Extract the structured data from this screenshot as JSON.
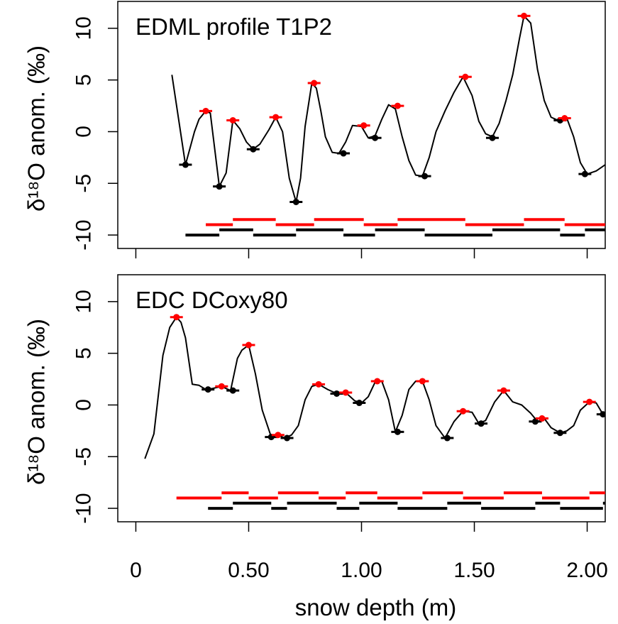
{
  "chart_data": [
    {
      "type": "line",
      "title": "EDML profile T1P2",
      "ylabel": "δ¹⁸O anom.  (‰)",
      "xlim": [
        -0.08,
        2.08
      ],
      "ylim": [
        -11.3,
        12.6
      ],
      "y_ticks": [
        -10,
        -5,
        0,
        5,
        10
      ],
      "y_tick_labels": [
        "-10",
        "-5",
        "0",
        "5",
        "10"
      ],
      "colors": {
        "line": "#000000",
        "peak": "#ff0000",
        "trough": "#000000"
      },
      "series": [
        {
          "x": [
            0.16,
            0.22,
            0.26,
            0.28,
            0.31,
            0.33,
            0.37,
            0.4,
            0.43,
            0.46,
            0.49,
            0.52,
            0.55,
            0.59,
            0.62,
            0.65,
            0.68,
            0.71,
            0.73,
            0.75,
            0.78,
            0.8,
            0.82,
            0.84,
            0.87,
            0.9,
            0.93,
            0.96,
            1.0,
            1.03,
            1.06,
            1.09,
            1.12,
            1.15,
            1.18,
            1.21,
            1.24,
            1.27,
            1.3,
            1.33,
            1.37,
            1.41,
            1.45,
            1.49,
            1.52,
            1.55,
            1.58,
            1.61,
            1.64,
            1.67,
            1.7,
            1.72,
            1.75,
            1.78,
            1.81,
            1.84,
            1.87,
            1.89,
            1.91,
            1.94,
            1.97,
            2.0,
            2.04,
            2.08
          ],
          "y": [
            5.5,
            -3.2,
            0.0,
            1.2,
            2.0,
            1.8,
            -5.3,
            -4.0,
            1.1,
            0.3,
            -1.0,
            -1.7,
            -1.2,
            0.2,
            1.4,
            0.0,
            -4.5,
            -6.8,
            -4.5,
            0.5,
            4.7,
            4.2,
            2.0,
            -0.5,
            -2.0,
            -2.1,
            -1.0,
            0.6,
            0.5,
            -0.6,
            -0.4,
            1.2,
            2.6,
            2.2,
            -0.5,
            -2.8,
            -4.2,
            -4.3,
            -2.5,
            0.0,
            2.0,
            3.8,
            5.3,
            3.5,
            1.0,
            -0.2,
            -0.5,
            0.8,
            3.0,
            5.5,
            9.0,
            11.2,
            10.5,
            6.0,
            3.0,
            1.4,
            1.1,
            1.2,
            1.3,
            -0.5,
            -3.0,
            -4.1,
            -3.8,
            -3.2
          ]
        }
      ],
      "peaks": [
        {
          "x": 0.31,
          "y": 2.0
        },
        {
          "x": 0.43,
          "y": 1.1
        },
        {
          "x": 0.62,
          "y": 1.4
        },
        {
          "x": 0.79,
          "y": 4.7
        },
        {
          "x": 1.01,
          "y": 0.6
        },
        {
          "x": 1.16,
          "y": 2.5
        },
        {
          "x": 1.46,
          "y": 5.3
        },
        {
          "x": 1.72,
          "y": 11.2
        },
        {
          "x": 1.9,
          "y": 1.3
        }
      ],
      "troughs": [
        {
          "x": 0.22,
          "y": -3.2
        },
        {
          "x": 0.37,
          "y": -5.3
        },
        {
          "x": 0.52,
          "y": -1.7
        },
        {
          "x": 0.71,
          "y": -6.8
        },
        {
          "x": 0.92,
          "y": -2.1
        },
        {
          "x": 1.06,
          "y": -0.6
        },
        {
          "x": 1.28,
          "y": -4.3
        },
        {
          "x": 1.58,
          "y": -0.6
        },
        {
          "x": 1.88,
          "y": 1.1
        },
        {
          "x": 1.99,
          "y": -4.1
        }
      ],
      "red_segments": [
        {
          "x": [
            0.31,
            0.43
          ],
          "y": -9.0
        },
        {
          "x": 0.43,
          "x_end": 0.62,
          "y": -8.5
        },
        {
          "x": [
            0.62,
            0.79
          ],
          "y": -9.0
        },
        {
          "x": [
            0.79,
            1.01
          ],
          "y": -8.5
        },
        {
          "x": [
            1.01,
            1.16
          ],
          "y": -9.0
        },
        {
          "x": [
            1.16,
            1.46
          ],
          "y": -8.5
        },
        {
          "x": [
            1.46,
            1.72
          ],
          "y": -9.0
        },
        {
          "x": [
            1.72,
            1.9
          ],
          "y": -8.5
        },
        {
          "x": [
            1.9,
            2.08
          ],
          "y": -9.0
        }
      ],
      "black_segments": [
        {
          "x": [
            0.22,
            0.37
          ],
          "y": -10.0
        },
        {
          "x": [
            0.37,
            0.52
          ],
          "y": -9.5
        },
        {
          "x": [
            0.52,
            0.71
          ],
          "y": -10.0
        },
        {
          "x": [
            0.71,
            0.92
          ],
          "y": -9.5
        },
        {
          "x": [
            0.92,
            1.06
          ],
          "y": -10.0
        },
        {
          "x": [
            1.06,
            1.28
          ],
          "y": -9.5
        },
        {
          "x": [
            1.28,
            1.58
          ],
          "y": -10.0
        },
        {
          "x": [
            1.58,
            1.88
          ],
          "y": -9.5
        },
        {
          "x": [
            1.88,
            1.99
          ],
          "y": -10.0
        },
        {
          "x": [
            1.99,
            2.08
          ],
          "y": -9.5
        }
      ]
    },
    {
      "type": "line",
      "title": "EDC DCoxy80",
      "ylabel": "δ¹⁸O anom.  (‰)",
      "xlabel": "snow depth (m)",
      "xlim": [
        -0.08,
        2.08
      ],
      "ylim": [
        -11.3,
        12.6
      ],
      "x_ticks": [
        0,
        0.5,
        1.0,
        1.5,
        2.0
      ],
      "x_tick_labels": [
        "0",
        "0.50",
        "1.00",
        "1.50",
        "2.00"
      ],
      "y_ticks": [
        -10,
        -5,
        0,
        5,
        10
      ],
      "y_tick_labels": [
        "-10",
        "-5",
        "0",
        "5",
        "10"
      ],
      "colors": {
        "line": "#000000",
        "peak": "#ff0000",
        "trough": "#000000"
      },
      "series": [
        {
          "x": [
            0.04,
            0.08,
            0.12,
            0.15,
            0.18,
            0.2,
            0.22,
            0.25,
            0.28,
            0.31,
            0.34,
            0.38,
            0.42,
            0.45,
            0.47,
            0.5,
            0.53,
            0.56,
            0.6,
            0.63,
            0.66,
            0.69,
            0.72,
            0.75,
            0.78,
            0.81,
            0.85,
            0.89,
            0.93,
            0.97,
            1.0,
            1.03,
            1.06,
            1.09,
            1.12,
            1.15,
            1.18,
            1.21,
            1.24,
            1.27,
            1.3,
            1.33,
            1.37,
            1.41,
            1.45,
            1.49,
            1.52,
            1.55,
            1.59,
            1.63,
            1.67,
            1.71,
            1.75,
            1.78,
            1.81,
            1.84,
            1.88,
            1.91,
            1.94,
            1.97,
            2.01,
            2.04,
            2.07
          ],
          "y": [
            -5.2,
            -2.8,
            4.8,
            7.5,
            8.5,
            8.0,
            6.5,
            2.0,
            1.9,
            1.5,
            1.6,
            1.8,
            1.4,
            4.5,
            5.3,
            5.8,
            3.0,
            -0.5,
            -3.1,
            -2.9,
            -3.2,
            -2.9,
            -2.0,
            0.5,
            1.8,
            2.0,
            1.5,
            1.1,
            1.2,
            0.4,
            0.2,
            0.8,
            2.2,
            2.3,
            0.5,
            -2.6,
            -1.0,
            1.5,
            2.3,
            2.3,
            0.5,
            -2.0,
            -3.2,
            -1.6,
            -0.6,
            -0.7,
            -1.8,
            -1.5,
            0.3,
            1.4,
            0.3,
            0.0,
            -0.8,
            -1.6,
            -1.3,
            -2.2,
            -2.7,
            -2.5,
            -2.0,
            -0.5,
            0.3,
            0.2,
            -0.9
          ]
        }
      ],
      "peaks": [
        {
          "x": 0.18,
          "y": 8.5
        },
        {
          "x": 0.38,
          "y": 1.8
        },
        {
          "x": 0.5,
          "y": 5.8
        },
        {
          "x": 0.63,
          "y": -2.9
        },
        {
          "x": 0.81,
          "y": 2.0
        },
        {
          "x": 0.93,
          "y": 1.2
        },
        {
          "x": 1.07,
          "y": 2.3
        },
        {
          "x": 1.27,
          "y": 2.3
        },
        {
          "x": 1.45,
          "y": -0.6
        },
        {
          "x": 1.63,
          "y": 1.4
        },
        {
          "x": 1.8,
          "y": -1.3
        },
        {
          "x": 2.01,
          "y": 0.3
        }
      ],
      "troughs": [
        {
          "x": 0.32,
          "y": 1.5
        },
        {
          "x": 0.43,
          "y": 1.4
        },
        {
          "x": 0.6,
          "y": -3.1
        },
        {
          "x": 0.67,
          "y": -3.2
        },
        {
          "x": 0.89,
          "y": 1.1
        },
        {
          "x": 0.99,
          "y": 0.2
        },
        {
          "x": 1.16,
          "y": -2.6
        },
        {
          "x": 1.38,
          "y": -3.2
        },
        {
          "x": 1.53,
          "y": -1.8
        },
        {
          "x": 1.77,
          "y": -1.6
        },
        {
          "x": 1.88,
          "y": -2.7
        },
        {
          "x": 2.07,
          "y": -0.9
        }
      ],
      "red_segments": [
        {
          "x": [
            0.18,
            0.38
          ],
          "y": -9.0
        },
        {
          "x": [
            0.38,
            0.5
          ],
          "y": -8.5
        },
        {
          "x": [
            0.5,
            0.63
          ],
          "y": -9.0
        },
        {
          "x": [
            0.63,
            0.81
          ],
          "y": -8.5
        },
        {
          "x": [
            0.81,
            0.93
          ],
          "y": -9.0
        },
        {
          "x": [
            0.93,
            1.07
          ],
          "y": -8.5
        },
        {
          "x": [
            1.07,
            1.27
          ],
          "y": -9.0
        },
        {
          "x": [
            1.27,
            1.45
          ],
          "y": -8.5
        },
        {
          "x": [
            1.45,
            1.63
          ],
          "y": -9.0
        },
        {
          "x": [
            1.63,
            1.8
          ],
          "y": -8.5
        },
        {
          "x": [
            1.8,
            2.01
          ],
          "y": -9.0
        },
        {
          "x": [
            2.01,
            2.08
          ],
          "y": -8.5
        }
      ],
      "black_segments": [
        {
          "x": [
            0.32,
            0.43
          ],
          "y": -10.0
        },
        {
          "x": [
            0.43,
            0.6
          ],
          "y": -9.5
        },
        {
          "x": [
            0.6,
            0.67
          ],
          "y": -10.0
        },
        {
          "x": [
            0.67,
            0.89
          ],
          "y": -9.5
        },
        {
          "x": [
            0.89,
            0.99
          ],
          "y": -10.0
        },
        {
          "x": [
            0.99,
            1.16
          ],
          "y": -9.5
        },
        {
          "x": [
            1.16,
            1.38
          ],
          "y": -10.0
        },
        {
          "x": [
            1.38,
            1.53
          ],
          "y": -9.5
        },
        {
          "x": [
            1.53,
            1.77
          ],
          "y": -10.0
        },
        {
          "x": [
            1.77,
            1.88
          ],
          "y": -9.5
        },
        {
          "x": [
            1.88,
            2.07
          ],
          "y": -10.0
        },
        {
          "x": [
            2.07,
            2.08
          ],
          "y": -9.5
        }
      ]
    }
  ]
}
